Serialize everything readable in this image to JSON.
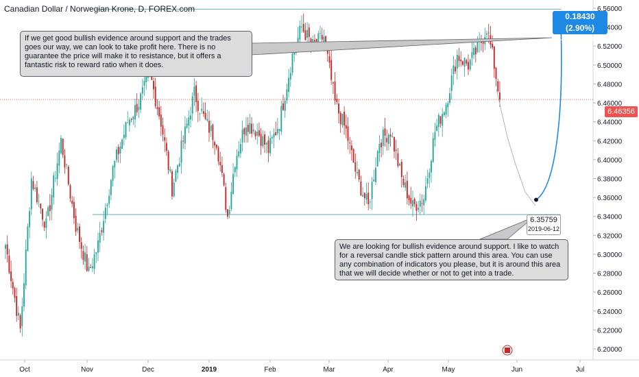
{
  "title": "Canadian Dollar / Norwegian Krone, D, FOREX.com",
  "colors": {
    "up": "#26a69a",
    "down": "#c62828",
    "level": "#5fb3b3",
    "projection": "#1e88e5",
    "last_price": "#ef5350"
  },
  "annotations": {
    "resistance_note": "If we get good bullish evidence around support and the trades goes our way, we can look to take profit here. There is no guarantee the price will make it to resistance, but it offers a fantastic risk to reward ratio when it does.",
    "support_note": "We are looking for bullish evidence around support. I like to watch for a reversal candle stick pattern around this area. You can use any combination of indicators you please, but it is around this area that we will decide whether or not to get into a trade."
  },
  "last_price": "6.46356",
  "projection": {
    "start_price": "6.35759",
    "start_date": "2019-06-12",
    "end_change": "0.18430 (2.90%)",
    "end_detail": "6.54189 @ 2019-06-"
  },
  "chart_data": {
    "type": "candlestick",
    "title": "Canadian Dollar / Norwegian Krone, D, FOREX.com",
    "x_ticks": [
      "Oct",
      "Nov",
      "Dec",
      "2019",
      "Feb",
      "Mar",
      "Apr",
      "May",
      "Jun",
      "Jul"
    ],
    "y_ticks": [
      "6.56000",
      "6.54000",
      "6.52000",
      "6.50000",
      "6.48000",
      "6.46000",
      "6.44000",
      "6.42000",
      "6.40000",
      "6.38000",
      "6.36000",
      "6.34000",
      "6.32000",
      "6.30000",
      "6.28000",
      "6.26000",
      "6.24000",
      "6.22000",
      "6.20000"
    ],
    "ylim": [
      6.19,
      6.57
    ],
    "levels": {
      "resistance": 6.559,
      "support": 6.342
    },
    "last_price": 6.46356,
    "series_anchors": [
      {
        "i": 0,
        "p": 6.31
      },
      {
        "i": 8,
        "p": 6.22
      },
      {
        "i": 14,
        "p": 6.38
      },
      {
        "i": 22,
        "p": 6.33
      },
      {
        "i": 30,
        "p": 6.42
      },
      {
        "i": 38,
        "p": 6.33
      },
      {
        "i": 45,
        "p": 6.28
      },
      {
        "i": 50,
        "p": 6.31
      },
      {
        "i": 58,
        "p": 6.39
      },
      {
        "i": 66,
        "p": 6.44
      },
      {
        "i": 72,
        "p": 6.46
      },
      {
        "i": 78,
        "p": 6.49
      },
      {
        "i": 84,
        "p": 6.44
      },
      {
        "i": 90,
        "p": 6.37
      },
      {
        "i": 96,
        "p": 6.42
      },
      {
        "i": 102,
        "p": 6.47
      },
      {
        "i": 108,
        "p": 6.44
      },
      {
        "i": 114,
        "p": 6.42
      },
      {
        "i": 120,
        "p": 6.34
      },
      {
        "i": 124,
        "p": 6.4
      },
      {
        "i": 130,
        "p": 6.44
      },
      {
        "i": 136,
        "p": 6.43
      },
      {
        "i": 142,
        "p": 6.41
      },
      {
        "i": 148,
        "p": 6.44
      },
      {
        "i": 155,
        "p": 6.51
      },
      {
        "i": 160,
        "p": 6.54
      },
      {
        "i": 166,
        "p": 6.52
      },
      {
        "i": 172,
        "p": 6.53
      },
      {
        "i": 178,
        "p": 6.46
      },
      {
        "i": 184,
        "p": 6.43
      },
      {
        "i": 190,
        "p": 6.38
      },
      {
        "i": 196,
        "p": 6.35
      },
      {
        "i": 202,
        "p": 6.42
      },
      {
        "i": 208,
        "p": 6.43
      },
      {
        "i": 214,
        "p": 6.38
      },
      {
        "i": 220,
        "p": 6.35
      },
      {
        "i": 226,
        "p": 6.36
      },
      {
        "i": 232,
        "p": 6.43
      },
      {
        "i": 238,
        "p": 6.46
      },
      {
        "i": 244,
        "p": 6.51
      },
      {
        "i": 250,
        "p": 6.5
      },
      {
        "i": 256,
        "p": 6.52
      },
      {
        "i": 260,
        "p": 6.54
      },
      {
        "i": 264,
        "p": 6.5
      },
      {
        "i": 267,
        "p": 6.4635
      }
    ],
    "projected_path": [
      {
        "date": "2019-06-12",
        "price": 6.35759
      },
      {
        "date": "2019-06-",
        "price": 6.54189
      }
    ]
  }
}
